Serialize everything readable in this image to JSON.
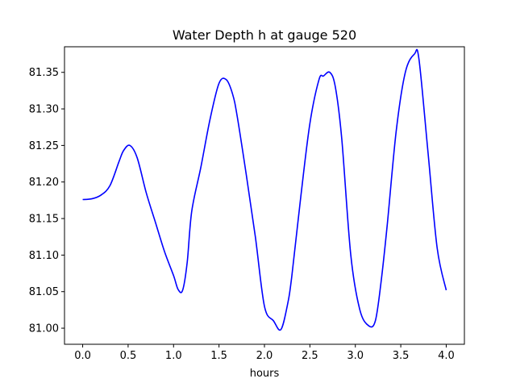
{
  "chart_data": {
    "type": "line",
    "title": "Water Depth h at gauge 520",
    "xlabel": "hours",
    "ylabel": "",
    "xlim": [
      -0.2,
      4.2
    ],
    "ylim": [
      80.978,
      81.385
    ],
    "xticks": [
      0.0,
      0.5,
      1.0,
      1.5,
      2.0,
      2.5,
      3.0,
      3.5,
      4.0
    ],
    "xtick_labels": [
      "0.0",
      "0.5",
      "1.0",
      "1.5",
      "2.0",
      "2.5",
      "3.0",
      "3.5",
      "4.0"
    ],
    "yticks": [
      81.0,
      81.05,
      81.1,
      81.15,
      81.2,
      81.25,
      81.3,
      81.35
    ],
    "ytick_labels": [
      "81.00",
      "81.05",
      "81.10",
      "81.15",
      "81.20",
      "81.25",
      "81.30",
      "81.35"
    ],
    "grid": false,
    "series": [
      {
        "color": "#0000ff",
        "x": [
          0.0,
          0.1,
          0.2,
          0.3,
          0.4,
          0.45,
          0.52,
          0.6,
          0.7,
          0.8,
          0.9,
          1.0,
          1.05,
          1.1,
          1.15,
          1.2,
          1.3,
          1.4,
          1.5,
          1.58,
          1.65,
          1.7,
          1.8,
          1.9,
          2.0,
          2.1,
          2.18,
          2.25,
          2.3,
          2.4,
          2.5,
          2.6,
          2.65,
          2.72,
          2.78,
          2.85,
          2.95,
          3.05,
          3.15,
          3.22,
          3.28,
          3.35,
          3.45,
          3.55,
          3.65,
          3.7,
          3.8,
          3.9,
          4.0
        ],
        "y": [
          81.176,
          81.177,
          81.182,
          81.195,
          81.228,
          81.243,
          81.25,
          81.233,
          81.185,
          81.145,
          81.105,
          81.072,
          81.053,
          81.052,
          81.09,
          81.16,
          81.22,
          81.285,
          81.335,
          81.34,
          81.32,
          81.29,
          81.21,
          81.125,
          81.03,
          81.01,
          80.998,
          81.03,
          81.07,
          81.18,
          81.28,
          81.34,
          81.345,
          81.35,
          81.33,
          81.26,
          81.1,
          81.025,
          81.003,
          81.01,
          81.06,
          81.14,
          81.27,
          81.35,
          81.375,
          81.368,
          81.24,
          81.11,
          81.052
        ]
      }
    ]
  }
}
